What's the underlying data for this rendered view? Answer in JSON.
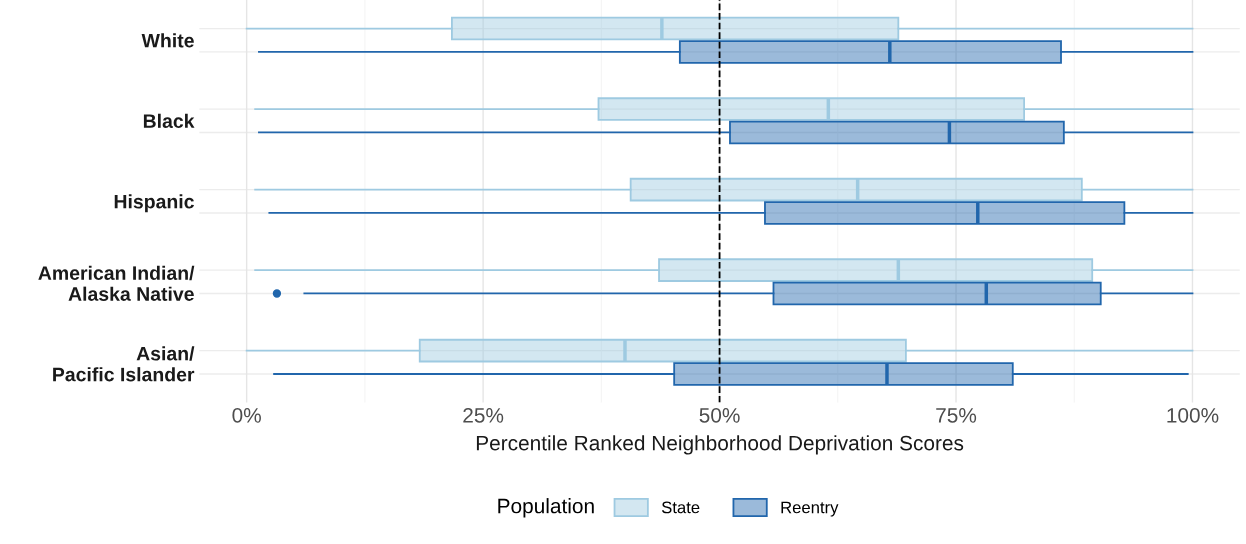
{
  "chart_data": {
    "type": "box",
    "orientation": "horizontal",
    "xlabel": "Percentile Ranked Neighborhood Deprivation Scores",
    "legend_title": "Population",
    "legend": "bottom",
    "grid": true,
    "categories": [
      "White",
      "Black",
      "Hispanic",
      "American Indian/\nAlaska Native",
      "Asian/\nPacific Islander"
    ],
    "xlim": [
      -5,
      105
    ],
    "xticks": [
      {
        "value": 0,
        "label": "0%"
      },
      {
        "value": 25,
        "label": "25%"
      },
      {
        "value": 50,
        "label": "50%"
      },
      {
        "value": 75,
        "label": "75%"
      },
      {
        "value": 100,
        "label": "100%"
      }
    ],
    "ref_lines": [
      {
        "axis": "x",
        "value": 50,
        "label": null,
        "color": "#000000",
        "line_style": "dashed"
      }
    ],
    "series": [
      {
        "name": "State",
        "color": "#9ecae1",
        "boxes": [
          {
            "low": 0,
            "q1": 21.7,
            "median": 43.9,
            "q3": 68.9,
            "high": 100
          },
          {
            "low": 0.9,
            "q1": 37.2,
            "median": 61.5,
            "q3": 82.2,
            "high": 100
          },
          {
            "low": 0.9,
            "q1": 40.6,
            "median": 64.6,
            "q3": 88.3,
            "high": 100
          },
          {
            "low": 0.9,
            "q1": 43.6,
            "median": 68.9,
            "q3": 89.4,
            "high": 100
          },
          {
            "low": 0,
            "q1": 18.3,
            "median": 40.0,
            "q3": 69.7,
            "high": 100
          }
        ]
      },
      {
        "name": "Reentry",
        "color": "#2166ac",
        "boxes": [
          {
            "low": 1.3,
            "q1": 45.8,
            "median": 68.0,
            "q3": 86.1,
            "high": 100
          },
          {
            "low": 1.3,
            "q1": 51.1,
            "median": 74.3,
            "q3": 86.4,
            "high": 100
          },
          {
            "low": 2.4,
            "q1": 54.8,
            "median": 77.3,
            "q3": 92.8,
            "high": 100
          },
          {
            "low": 6.1,
            "q1": 55.7,
            "median": 78.2,
            "q3": 90.3,
            "high": 100,
            "outliers": [
              3.2
            ]
          },
          {
            "low": 2.9,
            "q1": 45.2,
            "median": 67.7,
            "q3": 81.0,
            "high": 99.5
          }
        ]
      }
    ]
  }
}
